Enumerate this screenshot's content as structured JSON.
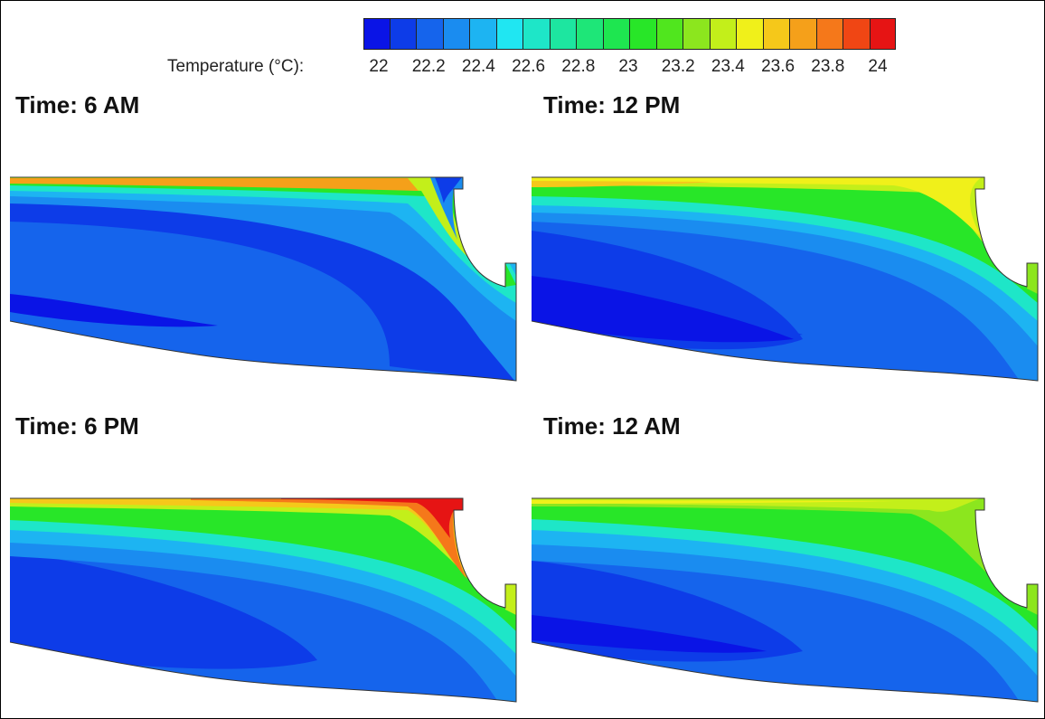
{
  "legend": {
    "label": "Temperature (°C):",
    "ticks": [
      "22",
      "22.2",
      "22.4",
      "22.6",
      "22.8",
      "23",
      "23.2",
      "23.4",
      "23.6",
      "23.8",
      "24"
    ],
    "colors": [
      "#0a14e6",
      "#0d3ce8",
      "#1564ec",
      "#1a8cf0",
      "#1db4f2",
      "#20e6f2",
      "#1ee6c8",
      "#1de6a0",
      "#1ee678",
      "#1ee650",
      "#28e628",
      "#50e61e",
      "#8ce61e",
      "#c3ef1a",
      "#f0f01a",
      "#f5c81a",
      "#f5a01a",
      "#f5781a",
      "#f04614",
      "#e61414"
    ]
  },
  "panels": [
    {
      "title": "Time: 6 AM"
    },
    {
      "title": "Time: 12 PM"
    },
    {
      "title": "Time: 6 PM"
    },
    {
      "title": "Time: 12 AM"
    }
  ]
}
